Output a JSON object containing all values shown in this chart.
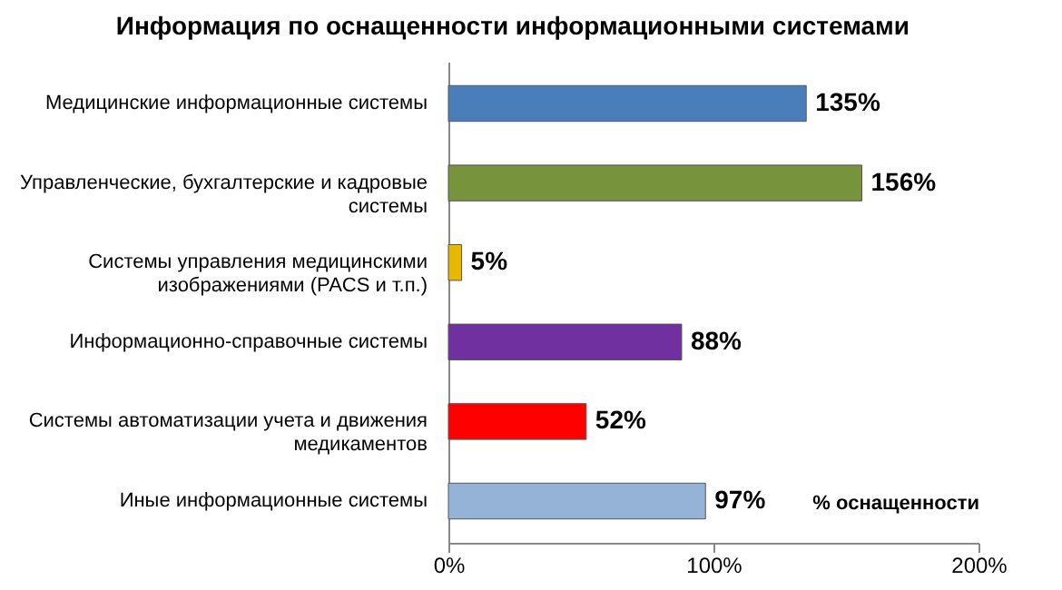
{
  "chart_data": {
    "type": "bar",
    "orientation": "horizontal",
    "title": "Информация по оснащенности информационными системами",
    "xlabel": "% оснащенности",
    "categories": [
      "Медицинские информационные системы",
      "Управленческие, бухгалтерские и кадровые системы",
      "Системы управления медицинскими изображениями (PACS и т.п.)",
      "Информационно-справочные  системы",
      "Системы автоматизации  учета и движения медикаментов",
      "Иные информационные  системы"
    ],
    "values": [
      135,
      156,
      5,
      88,
      52,
      97
    ],
    "value_labels": [
      "135%",
      "156%",
      "5%",
      "88%",
      "52%",
      "97%"
    ],
    "colors": [
      "#4a7ebb",
      "#77933c",
      "#e6b800",
      "#7030a0",
      "#ff0000",
      "#95b3d7"
    ],
    "xlim": [
      0,
      200
    ],
    "xticks": [
      {
        "value": 0,
        "label": "0%"
      },
      {
        "value": 100,
        "label": "100%"
      },
      {
        "value": 200,
        "label": "200%"
      }
    ],
    "grid": false
  }
}
